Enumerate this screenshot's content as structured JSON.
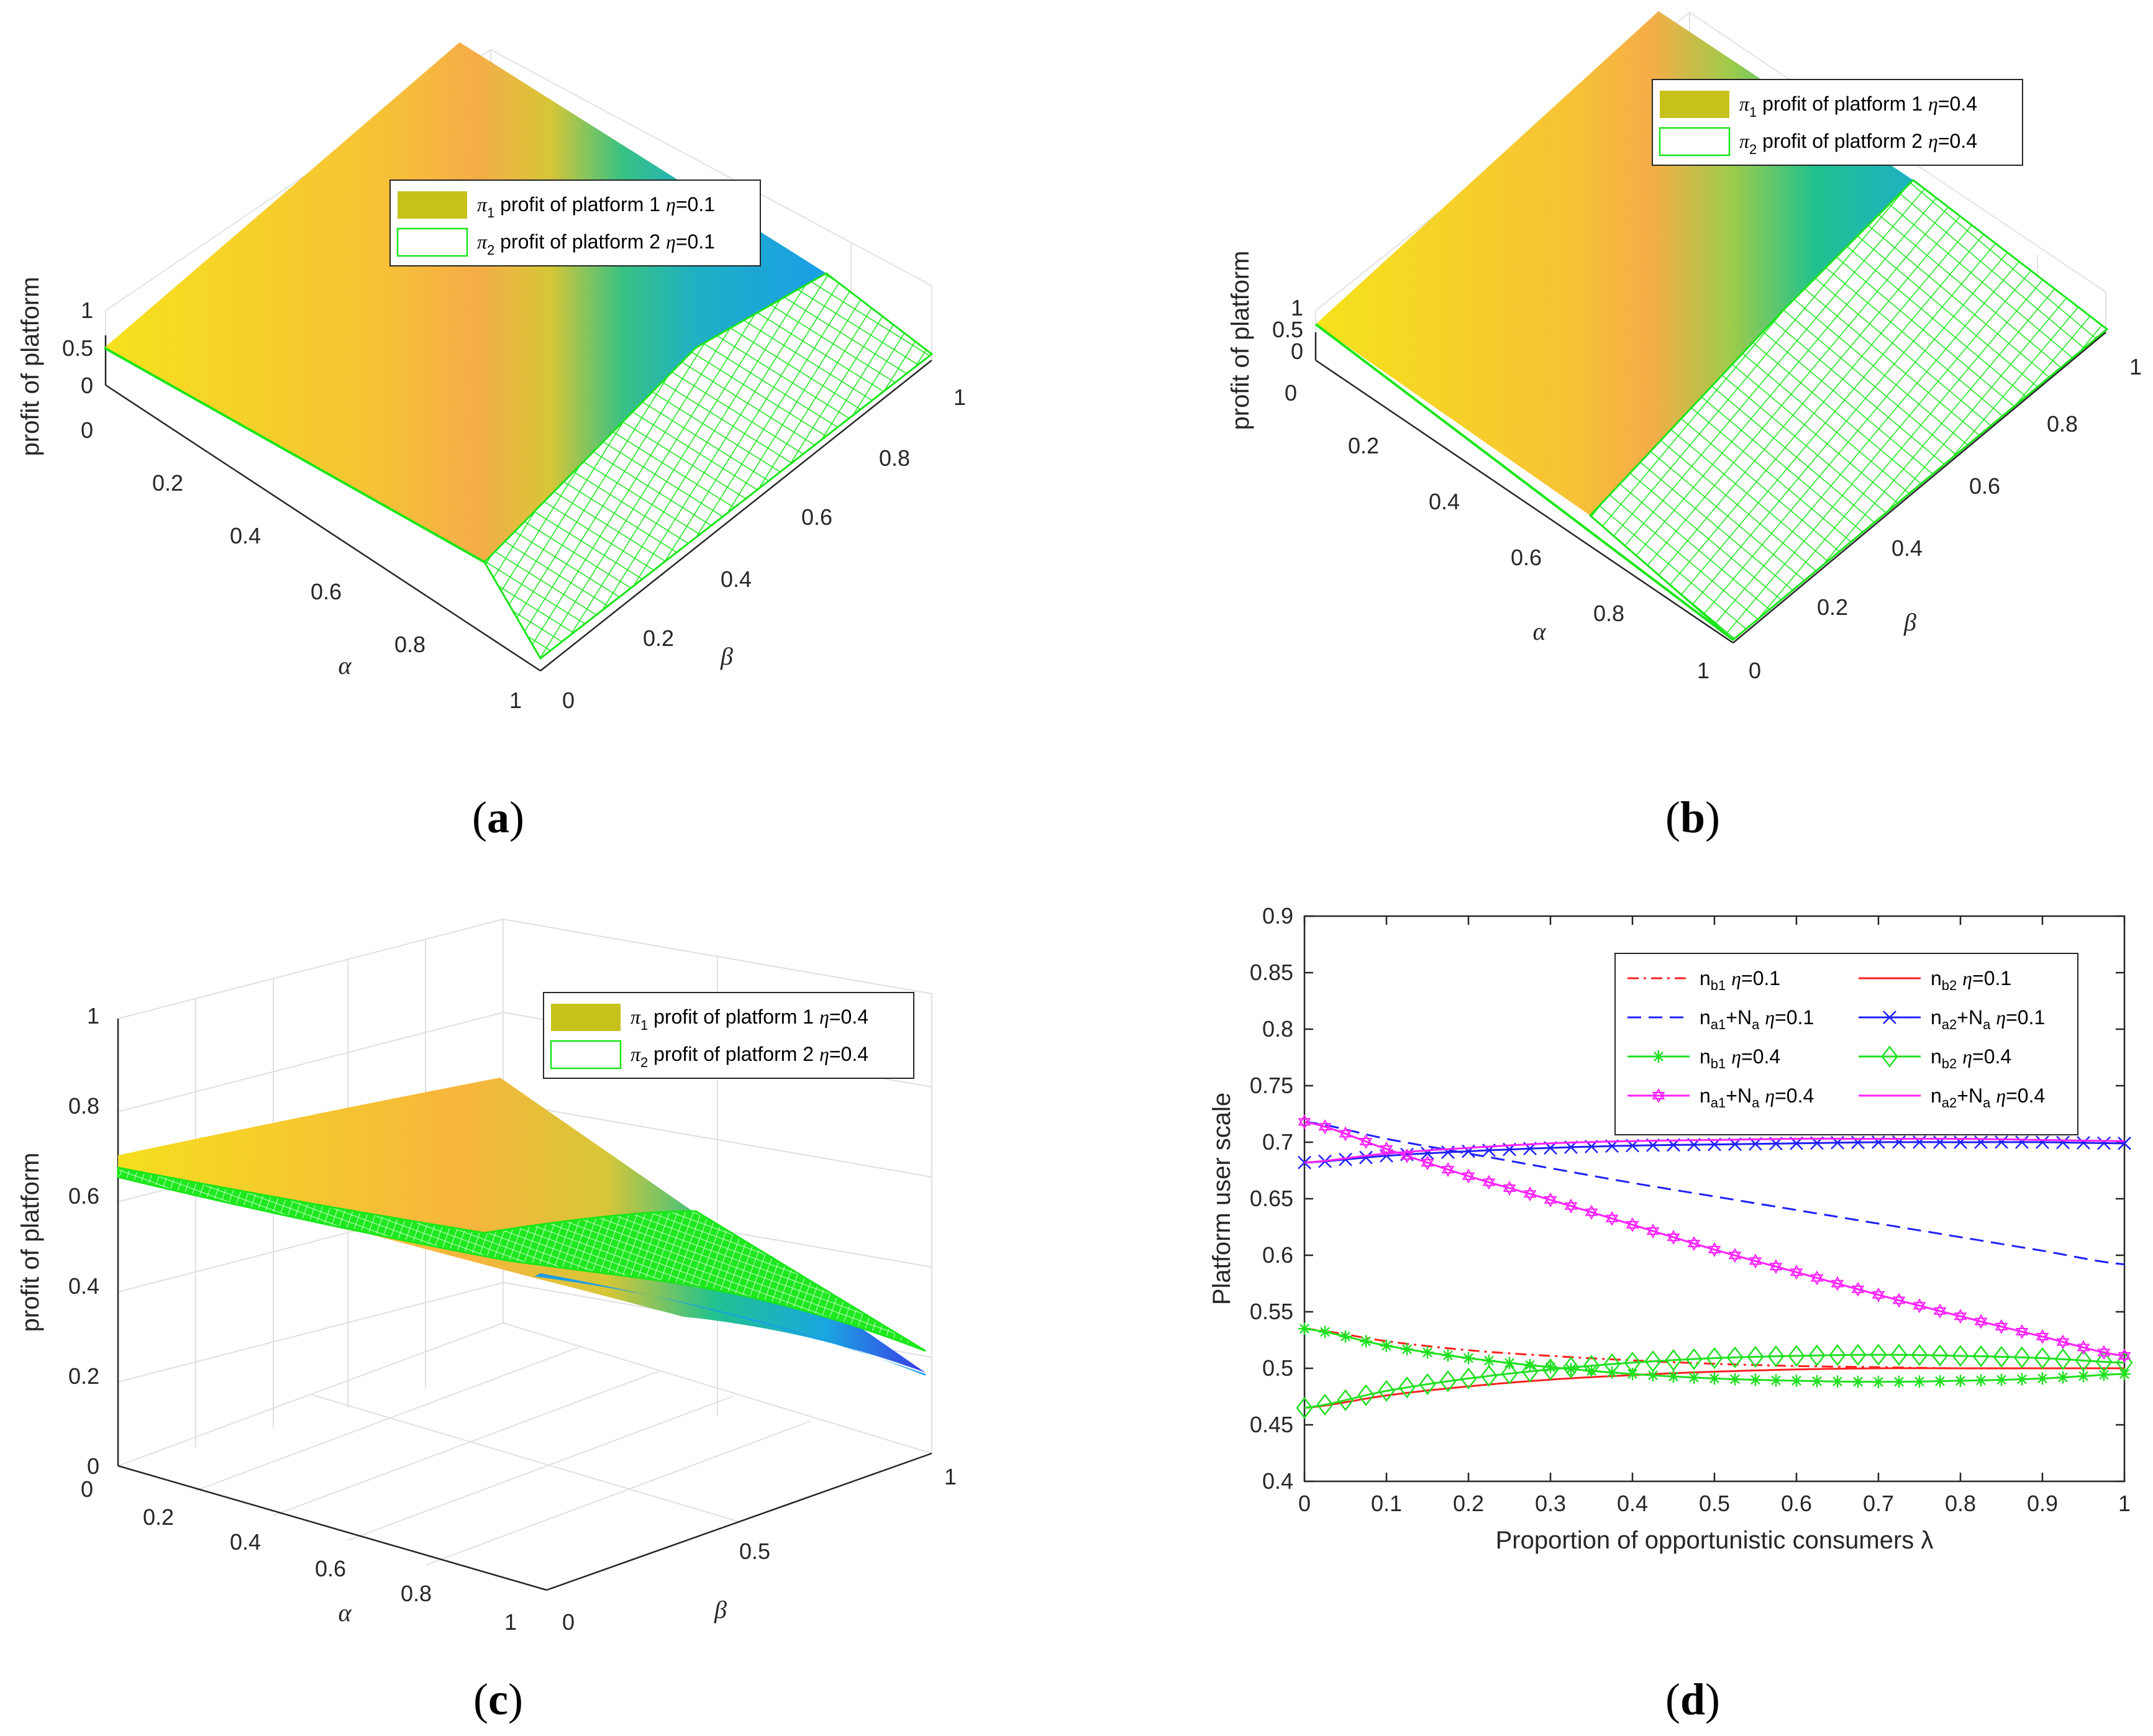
{
  "panel_a": {
    "caption_label": "a",
    "z_label": "profit of platform",
    "z_ticks": [
      "0",
      "0.5",
      "1"
    ],
    "alpha_label": "α",
    "alpha_ticks": [
      "0",
      "0.2",
      "0.4",
      "0.6",
      "0.8",
      "1"
    ],
    "beta_label": "β",
    "beta_ticks": [
      "0",
      "0.2",
      "0.4",
      "0.6",
      "0.8",
      "1"
    ],
    "legend": [
      {
        "sym": "π",
        "sub": "1",
        "text": " profit of platform 1 ",
        "eta": "η",
        "val": "=0.1"
      },
      {
        "sym": "π",
        "sub": "2",
        "text": " profit of platform 2 ",
        "eta": "η",
        "val": "=0.1"
      }
    ]
  },
  "panel_b": {
    "caption_label": "b",
    "z_label": "profit of platform",
    "z_ticks": [
      "0",
      "0.5",
      "1"
    ],
    "alpha_label": "α",
    "alpha_ticks": [
      "0",
      "0.2",
      "0.4",
      "0.6",
      "0.8",
      "1"
    ],
    "beta_label": "β",
    "beta_ticks": [
      "0",
      "0.2",
      "0.4",
      "0.6",
      "0.8",
      "1"
    ],
    "legend": [
      {
        "sym": "π",
        "sub": "1",
        "text": " profit of platform 1 ",
        "eta": "η",
        "val": "=0.4"
      },
      {
        "sym": "π",
        "sub": "2",
        "text": " profit of platform 2 ",
        "eta": "η",
        "val": "=0.4"
      }
    ]
  },
  "panel_c": {
    "caption_label": "c",
    "z_label": "profit of platform",
    "z_ticks": [
      "0",
      "0.2",
      "0.4",
      "0.6",
      "0.8",
      "1"
    ],
    "alpha_label": "α",
    "alpha_ticks": [
      "0",
      "0.2",
      "0.4",
      "0.6",
      "0.8",
      "1"
    ],
    "beta_label": "β",
    "beta_ticks": [
      "0",
      "0.5",
      "1"
    ],
    "legend": [
      {
        "sym": "π",
        "sub": "1",
        "text": " profit of platform 1 ",
        "eta": "η",
        "val": "=0.4"
      },
      {
        "sym": "π",
        "sub": "2",
        "text": " profit of platform 2 ",
        "eta": "η",
        "val": "=0.4"
      }
    ]
  },
  "panel_d": {
    "caption_label": "d"
  },
  "colors": {
    "yellow": "#f5e21c",
    "orange": "#f5b042",
    "teal": "#1fc28f",
    "blue": "#1a9ee8",
    "mesh_green": "#19e619",
    "red": "#ff2020",
    "dblue": "#2020ff",
    "magenta": "#ff20ff",
    "green": "#20e020"
  },
  "chart_data": [
    {
      "type": "surface",
      "panel": "a",
      "title": "",
      "xlabel": "α",
      "ylabel": "β",
      "zlabel": "profit of platform",
      "xlim": [
        0,
        1
      ],
      "ylim": [
        0,
        1
      ],
      "zlim": [
        0,
        1
      ],
      "series": [
        {
          "name": "π1 profit of platform 1 η=0.1",
          "style": "filled surface"
        },
        {
          "name": "π2 profit of platform 2 η=0.1",
          "style": "green mesh"
        }
      ]
    },
    {
      "type": "surface",
      "panel": "b",
      "title": "",
      "xlabel": "α",
      "ylabel": "β",
      "zlabel": "profit of platform",
      "xlim": [
        0,
        1
      ],
      "ylim": [
        0,
        1
      ],
      "zlim": [
        0,
        1
      ],
      "series": [
        {
          "name": "π1 profit of platform 1 η=0.4",
          "style": "filled surface"
        },
        {
          "name": "π2 profit of platform 2 η=0.4",
          "style": "green mesh"
        }
      ]
    },
    {
      "type": "surface",
      "panel": "c",
      "title": "",
      "xlabel": "α",
      "ylabel": "β",
      "zlabel": "profit of platform",
      "xlim": [
        0,
        1
      ],
      "ylim": [
        0,
        1
      ],
      "zlim": [
        0,
        1
      ],
      "series": [
        {
          "name": "π1 profit of platform 1 η=0.4",
          "style": "filled surface"
        },
        {
          "name": "π2 profit of platform 2 η=0.4",
          "style": "green mesh"
        }
      ]
    },
    {
      "type": "line",
      "panel": "d",
      "title": "",
      "xlabel": "Proportion of opportunistic consumers λ",
      "ylabel": "Platform user scale",
      "xlim": [
        0,
        1
      ],
      "ylim": [
        0.4,
        0.9
      ],
      "xticks": [
        "0",
        "0.1",
        "0.2",
        "0.3",
        "0.4",
        "0.5",
        "0.6",
        "0.7",
        "0.8",
        "0.9",
        "1"
      ],
      "yticks": [
        "0.4",
        "0.45",
        "0.5",
        "0.55",
        "0.6",
        "0.65",
        "0.7",
        "0.75",
        "0.8",
        "0.85",
        "0.9"
      ],
      "x": [
        0,
        0.1,
        0.2,
        0.3,
        0.4,
        0.5,
        0.6,
        0.7,
        0.8,
        0.9,
        1
      ],
      "series": [
        {
          "name": "nb1 η=0.1",
          "label": "n",
          "sub": "b1",
          "eta": "=0.1",
          "color": "#ff2020",
          "dash": "18,8,4,8",
          "marker": "none",
          "values": [
            0.535,
            0.524,
            0.516,
            0.511,
            0.507,
            0.504,
            0.502,
            0.501,
            0.5,
            0.5,
            0.5
          ]
        },
        {
          "name": "nb2 η=0.1",
          "label": "n",
          "sub": "b2",
          "eta": "=0.1",
          "color": "#ff2020",
          "dash": "",
          "marker": "none",
          "values": [
            0.465,
            0.476,
            0.484,
            0.49,
            0.494,
            0.497,
            0.499,
            0.5,
            0.5,
            0.5,
            0.5
          ]
        },
        {
          "name": "na1+Na η=0.1",
          "label": "n",
          "sub": "a1",
          "plus": "+N",
          "sub2": "a",
          "eta": "=0.1",
          "color": "#2020ff",
          "dash": "22,12",
          "marker": "none",
          "values": [
            0.718,
            0.703,
            0.69,
            0.677,
            0.664,
            0.652,
            0.64,
            0.628,
            0.616,
            0.604,
            0.592
          ]
        },
        {
          "name": "na2+Na η=0.1",
          "label": "n",
          "sub": "a2",
          "plus": "+N",
          "sub2": "a",
          "eta": "=0.1",
          "color": "#2020ff",
          "dash": "",
          "marker": "x",
          "values": [
            0.682,
            0.688,
            0.692,
            0.695,
            0.697,
            0.698,
            0.699,
            0.7,
            0.7,
            0.7,
            0.699
          ]
        },
        {
          "name": "nb1 η=0.4",
          "label": "n",
          "sub": "b1",
          "eta": "=0.4",
          "color": "#20e020",
          "dash": "",
          "marker": "star",
          "values": [
            0.535,
            0.52,
            0.509,
            0.501,
            0.495,
            0.491,
            0.489,
            0.488,
            0.489,
            0.491,
            0.495
          ]
        },
        {
          "name": "nb2 η=0.4",
          "label": "n",
          "sub": "b2",
          "eta": "=0.4",
          "color": "#20e020",
          "dash": "",
          "marker": "diamond",
          "values": [
            0.465,
            0.48,
            0.491,
            0.499,
            0.505,
            0.509,
            0.511,
            0.512,
            0.511,
            0.509,
            0.505
          ]
        },
        {
          "name": "na1+Na η=0.4",
          "label": "n",
          "sub": "a1",
          "plus": "+N",
          "sub2": "a",
          "eta": "=0.4",
          "color": "#ff20ff",
          "dash": "",
          "marker": "hexagram",
          "values": [
            0.718,
            0.694,
            0.67,
            0.649,
            0.627,
            0.605,
            0.585,
            0.565,
            0.546,
            0.528,
            0.511
          ]
        },
        {
          "name": "na2+Na η=0.4",
          "label": "n",
          "sub": "a2",
          "plus": "+N",
          "sub2": "a",
          "eta": "=0.4",
          "color": "#ff20ff",
          "dash": "",
          "marker": "none",
          "values": [
            0.682,
            0.69,
            0.695,
            0.699,
            0.701,
            0.702,
            0.703,
            0.703,
            0.703,
            0.702,
            0.701
          ]
        }
      ]
    }
  ]
}
